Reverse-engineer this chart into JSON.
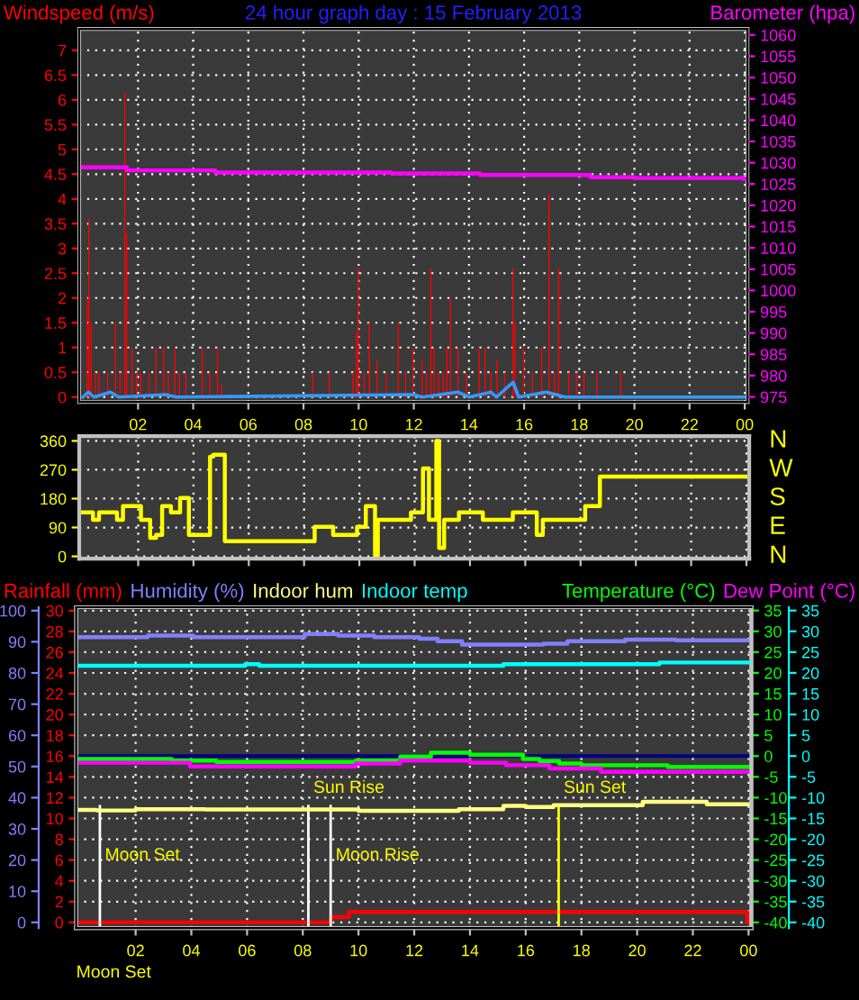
{
  "chart_data": [
    {
      "type": "bar",
      "title": "24 hour graph day : 15 February 2013",
      "legend": "top",
      "grid": true,
      "xlim": [
        "2013-02-14T23:52",
        "2013-02-16T00:06"
      ],
      "xticks": [
        {
          "value": "2013-02-15T02:00",
          "label": "02"
        },
        {
          "value": "2013-02-15T04:00",
          "label": "04"
        },
        {
          "value": "2013-02-15T06:00",
          "label": "06"
        },
        {
          "value": "2013-02-15T08:00",
          "label": "08"
        },
        {
          "value": "2013-02-15T10:00",
          "label": "10"
        },
        {
          "value": "2013-02-15T12:00",
          "label": "12"
        },
        {
          "value": "2013-02-15T14:00",
          "label": "14"
        },
        {
          "value": "2013-02-15T16:00",
          "label": "16"
        },
        {
          "value": "2013-02-15T18:00",
          "label": "18"
        },
        {
          "value": "2013-02-15T20:00",
          "label": "20"
        },
        {
          "value": "2013-02-15T22:00",
          "label": "22"
        },
        {
          "value": "2013-02-16T00:00",
          "label": "00"
        }
      ],
      "ylim": [
        -0.1,
        7.43
      ],
      "yticks": [
        0,
        0.5,
        1,
        1.5,
        2,
        2.5,
        3,
        3.5,
        4,
        4.5,
        5,
        5.5,
        6,
        6.5,
        7
      ],
      "y2lim": [
        973.8,
        1061.4
      ],
      "y2ticks": [
        975,
        980,
        985,
        990,
        995,
        1000,
        1005,
        1010,
        1015,
        1020,
        1025,
        1030,
        1035,
        1040,
        1045,
        1050,
        1055,
        1060
      ],
      "series": [
        {
          "name": "Windspeed (m/s)",
          "type": "bar",
          "color": "#ff0000",
          "x": [
            "2013-02-15T00:09",
            "2013-02-15T00:13",
            "2013-02-15T00:18",
            "2013-02-15T00:27",
            "2013-02-15T00:35",
            "2013-02-15T00:54",
            "2013-02-15T01:11",
            "2013-02-15T01:21",
            "2013-02-15T01:31",
            "2013-02-15T01:35",
            "2013-02-15T01:47",
            "2013-02-15T01:57",
            "2013-02-15T02:06",
            "2013-02-15T02:24",
            "2013-02-15T02:39",
            "2013-02-15T02:56",
            "2013-02-15T03:06",
            "2013-02-15T03:20",
            "2013-02-15T03:30",
            "2013-02-15T03:44",
            "2013-02-15T04:20",
            "2013-02-15T04:36",
            "2013-02-15T04:53",
            "2013-02-15T05:02",
            "2013-02-15T08:20",
            "2013-02-15T08:56",
            "2013-02-15T09:48",
            "2013-02-15T09:55",
            "2013-02-15T09:59",
            "2013-02-15T10:12",
            "2013-02-15T10:23",
            "2013-02-15T10:40",
            "2013-02-15T11:00",
            "2013-02-15T11:26",
            "2013-02-15T11:42",
            "2013-02-15T11:58",
            "2013-02-15T12:18",
            "2013-02-15T12:27",
            "2013-02-15T12:37",
            "2013-02-15T12:44",
            "2013-02-15T12:54",
            "2013-02-15T13:04",
            "2013-02-15T13:12",
            "2013-02-15T13:20",
            "2013-02-15T13:36",
            "2013-02-15T13:54",
            "2013-02-15T14:22",
            "2013-02-15T14:35",
            "2013-02-15T14:48",
            "2013-02-15T15:01",
            "2013-02-15T15:18",
            "2013-02-15T15:36",
            "2013-02-15T15:40",
            "2013-02-15T15:59",
            "2013-02-15T16:18",
            "2013-02-15T16:38",
            "2013-02-15T16:54",
            "2013-02-15T17:06",
            "2013-02-15T17:15",
            "2013-02-15T17:37",
            "2013-02-15T17:54",
            "2013-02-15T18:10",
            "2013-02-15T18:38",
            "2013-02-15T19:30"
          ],
          "values": [
            2.0,
            3.6,
            1.5,
            0.5,
            0.5,
            0.5,
            1.5,
            0.5,
            6.15,
            3.3,
            1.0,
            0.5,
            0.5,
            0.5,
            1.0,
            1.0,
            0.5,
            1.0,
            0.5,
            0.5,
            1.0,
            0.5,
            1.0,
            0.25,
            0.5,
            0.5,
            0.5,
            1.3,
            2.6,
            0.5,
            1.5,
            0.75,
            0.5,
            1.5,
            0.5,
            1.0,
            0.75,
            0.5,
            2.6,
            1.0,
            0.5,
            0.5,
            1.0,
            2.0,
            1.0,
            0.5,
            1.0,
            1.0,
            0.5,
            0.75,
            0.5,
            2.6,
            1.5,
            1.0,
            0.5,
            1.0,
            4.1,
            0.5,
            2.6,
            0.5,
            0.5,
            0.5,
            0.5,
            0.5
          ]
        },
        {
          "type": "line",
          "color": "#3399ff",
          "x": [
            "2013-02-15T00:00",
            "2013-02-15T00:12",
            "2013-02-15T00:24",
            "2013-02-15T01:00",
            "2013-02-15T01:18",
            "2013-02-15T03:00",
            "2013-02-15T03:24",
            "2013-02-15T12:00",
            "2013-02-15T12:18",
            "2013-02-15T13:36",
            "2013-02-15T14:00",
            "2013-02-15T14:48",
            "2013-02-15T15:00",
            "2013-02-15T15:36",
            "2013-02-15T15:48",
            "2013-02-15T16:48",
            "2013-02-15T17:30",
            "2013-02-16T00:00"
          ],
          "values": [
            0,
            0.1,
            0,
            0.1,
            0,
            0.05,
            0,
            0.05,
            0,
            0.1,
            0,
            0.1,
            0,
            0.3,
            0,
            0.1,
            0,
            0
          ]
        },
        {
          "name": "Barometer (hpa)",
          "type": "step",
          "axis": "y2",
          "color": "#ff00ff",
          "x": [
            "2013-02-15T00:00",
            "2013-02-15T01:36",
            "2013-02-15T04:48",
            "2013-02-15T10:48",
            "2013-02-15T11:12",
            "2013-02-15T14:24",
            "2013-02-15T18:24",
            "2013-02-15T20:00",
            "2013-02-16T00:00"
          ],
          "values": [
            1028.9,
            1028.2,
            1027.7,
            1027.7,
            1027.5,
            1027.1,
            1026.6,
            1026.4,
            1026.2
          ]
        }
      ]
    },
    {
      "type": "step",
      "grid": true,
      "tick_labels": "y",
      "legend": false,
      "xlim": [
        "2013-02-14T23:52",
        "2013-02-16T00:06"
      ],
      "xticks": [
        {
          "value": "2013-02-15T02:00",
          "label": null
        },
        {
          "value": "2013-02-15T04:00",
          "label": null
        },
        {
          "value": "2013-02-15T06:00",
          "label": null
        },
        {
          "value": "2013-02-15T08:00",
          "label": null
        },
        {
          "value": "2013-02-15T10:00",
          "label": null
        },
        {
          "value": "2013-02-15T12:00",
          "label": null
        },
        {
          "value": "2013-02-15T14:00",
          "label": null
        },
        {
          "value": "2013-02-15T16:00",
          "label": null
        },
        {
          "value": "2013-02-15T18:00",
          "label": null
        },
        {
          "value": "2013-02-15T20:00",
          "label": null
        },
        {
          "value": "2013-02-15T22:00",
          "label": null
        },
        {
          "value": "2013-02-16T00:00",
          "label": null
        }
      ],
      "ylim": [
        -7,
        375
      ],
      "yticks": [
        0,
        90,
        180,
        270,
        360
      ],
      "annotations": [
        "N",
        "W",
        "S",
        "E",
        "N"
      ],
      "series": [
        {
          "color": "#ffff00",
          "x": [
            "2013-02-15T00:00",
            "2013-02-15T00:22",
            "2013-02-15T00:35",
            "2013-02-15T01:14",
            "2013-02-15T01:27",
            "2013-02-15T02:06",
            "2013-02-15T02:26",
            "2013-02-15T02:39",
            "2013-02-15T02:52",
            "2013-02-15T03:11",
            "2013-02-15T03:31",
            "2013-02-15T03:50",
            "2013-02-15T04:36",
            "2013-02-15T04:43",
            "2013-02-15T05:08",
            "2013-02-15T08:23",
            "2013-02-15T09:03",
            "2013-02-15T09:55",
            "2013-02-15T10:14",
            "2013-02-15T10:34",
            "2013-02-15T10:40",
            "2013-02-15T11:52",
            "2013-02-15T12:18",
            "2013-02-15T12:31",
            "2013-02-15T12:47",
            "2013-02-15T12:53",
            "2013-02-15T13:04",
            "2013-02-15T13:36",
            "2013-02-15T14:28",
            "2013-02-15T15:33",
            "2013-02-15T16:25",
            "2013-02-15T16:38",
            "2013-02-15T18:10",
            "2013-02-15T18:42",
            "2013-02-16T00:00"
          ],
          "values": [
            137,
            114,
            137,
            114,
            157,
            114,
            58,
            67,
            157,
            137,
            182,
            67,
            311,
            317,
            47,
            92,
            67,
            92,
            157,
            0,
            114,
            137,
            274,
            114,
            360,
            26,
            114,
            137,
            114,
            137,
            67,
            114,
            157,
            249,
            249
          ]
        }
      ]
    },
    {
      "type": "step",
      "legend": "top",
      "grid": true,
      "xlim": [
        "2013-02-14T23:52",
        "2013-02-16T00:06"
      ],
      "xticks": [
        {
          "value": "2013-02-15T02:00",
          "label": "02"
        },
        {
          "value": "2013-02-15T04:00",
          "label": "04"
        },
        {
          "value": "2013-02-15T06:00",
          "label": "06"
        },
        {
          "value": "2013-02-15T08:00",
          "label": "08"
        },
        {
          "value": "2013-02-15T10:00",
          "label": "10"
        },
        {
          "value": "2013-02-15T12:00",
          "label": "12"
        },
        {
          "value": "2013-02-15T14:00",
          "label": "14"
        },
        {
          "value": "2013-02-15T16:00",
          "label": "16"
        },
        {
          "value": "2013-02-15T18:00",
          "label": "18"
        },
        {
          "value": "2013-02-15T20:00",
          "label": "20"
        },
        {
          "value": "2013-02-15T22:00",
          "label": "22"
        },
        {
          "value": "2013-02-16T00:00",
          "label": "00"
        }
      ],
      "ylim": [
        -0.54,
        30.33
      ],
      "yticks": [
        0,
        2,
        4,
        6,
        8,
        10,
        12,
        14,
        16,
        18,
        20,
        22,
        24,
        26,
        28,
        30
      ],
      "y2lim": [
        -1.8,
        101.1
      ],
      "y2ticks": [
        0,
        10,
        20,
        30,
        40,
        50,
        60,
        70,
        80,
        90,
        100
      ],
      "ref_lines": [
        {
          "axis": "x",
          "value": "2013-02-15T00:43",
          "label": "Moon Set",
          "color": "#ffffff"
        },
        {
          "axis": "x",
          "value": "2013-02-15T08:12",
          "label": "Sun Rise",
          "color": "#ffffff"
        },
        {
          "axis": "x",
          "value": "2013-02-15T09:00",
          "label": "Moon Rise",
          "color": "#ffffff"
        },
        {
          "axis": "x",
          "value": "2013-02-15T17:11",
          "label": "Sun Set",
          "color": "#ffff00"
        }
      ],
      "annotations": [
        "Moon Set"
      ],
      "series": [
        {
          "name": "Rainfall (mm)",
          "color": "#ff0000",
          "x": [
            "2013-02-15T00:00",
            "2013-02-15T09:00",
            "2013-02-15T09:39",
            "2013-02-15T23:57",
            "2013-02-16T00:05"
          ],
          "values": [
            0,
            0.5,
            1.0,
            0,
            0
          ]
        },
        {
          "name": "Humidity (%)",
          "axis": "y2",
          "color": "#8080ff",
          "x": [
            "2013-02-15T00:00",
            "2013-02-15T02:26",
            "2013-02-15T04:04",
            "2013-02-15T08:04",
            "2013-02-15T09:16",
            "2013-02-15T10:34",
            "2013-02-15T12:11",
            "2013-02-15T12:50",
            "2013-02-15T13:43",
            "2013-02-15T16:38",
            "2013-02-15T17:30",
            "2013-02-15T19:34",
            "2013-02-15T21:24",
            "2013-02-16T00:00"
          ],
          "values": [
            91.5,
            92.0,
            91.5,
            92.5,
            92.0,
            91.5,
            91.0,
            90.2,
            89.1,
            89.4,
            90.2,
            90.7,
            90.5,
            90.5
          ]
        },
        {
          "name": "Indoor hum",
          "axis": "y2",
          "color": "#ffff80",
          "x": [
            "2013-02-15T00:00",
            "2013-02-15T00:36",
            "2013-02-15T02:00",
            "2013-02-15T04:30",
            "2013-02-15T10:00",
            "2013-02-15T13:36",
            "2013-02-15T15:12",
            "2013-02-15T16:00",
            "2013-02-15T17:00",
            "2013-02-15T20:12",
            "2013-02-15T22:30",
            "2013-02-16T00:00"
          ],
          "values": [
            36.1,
            35.9,
            36.3,
            36.2,
            35.8,
            36.3,
            37.4,
            37.0,
            37.6,
            38.7,
            37.9,
            37.9
          ]
        }
      ]
    },
    {
      "type": "step",
      "legend": "top",
      "tick_labels": "y",
      "xlim": [
        "2013-02-14T23:52",
        "2013-02-16T00:06"
      ],
      "ylim": [
        -41.35,
        35.8
      ],
      "yticks": [
        -40,
        -35,
        -30,
        -25,
        -20,
        -15,
        -10,
        -5,
        0,
        5,
        10,
        15,
        20,
        25,
        30,
        35
      ],
      "y2lim": [
        -41.35,
        35.8
      ],
      "y2ticks": [
        -40,
        -35,
        -30,
        -25,
        -20,
        -15,
        -10,
        -5,
        0,
        5,
        10,
        15,
        20,
        25,
        30,
        35
      ],
      "ref_lines": [
        {
          "axis": "y",
          "value": 0,
          "color": "#000080"
        }
      ],
      "series": [
        {
          "name": "Indoor temp",
          "axis": "y2",
          "color": "#00ffff",
          "x": [
            "2013-02-15T00:00",
            "2013-02-15T05:56",
            "2013-02-15T06:26",
            "2013-02-15T15:12",
            "2013-02-15T20:48",
            "2013-02-16T00:00"
          ],
          "values": [
            21.7,
            22.1,
            21.7,
            22.1,
            22.5,
            22.5
          ]
        },
        {
          "name": "Temperature (°C)",
          "color": "#00ff00",
          "x": [
            "2013-02-15T00:00",
            "2013-02-15T03:18",
            "2013-02-15T04:54",
            "2013-02-15T09:54",
            "2013-02-15T11:30",
            "2013-02-15T12:36",
            "2013-02-15T14:00",
            "2013-02-15T15:54",
            "2013-02-15T16:30",
            "2013-02-15T17:12",
            "2013-02-15T18:00",
            "2013-02-15T21:06",
            "2013-02-16T00:00"
          ],
          "values": [
            -0.7,
            -1.1,
            -1.4,
            -1.1,
            -0.1,
            0.8,
            0.3,
            -0.7,
            -1.2,
            -1.8,
            -2.2,
            -2.6,
            -2.6
          ]
        },
        {
          "name": "Dew Point (°C)",
          "color": "#ff00ff",
          "x": [
            "2013-02-15T00:00",
            "2013-02-15T03:57",
            "2013-02-15T09:54",
            "2013-02-15T11:30",
            "2013-02-15T14:00",
            "2013-02-15T15:18",
            "2013-02-15T16:51",
            "2013-02-15T18:42",
            "2013-02-16T00:00"
          ],
          "values": [
            -1.6,
            -2.5,
            -1.8,
            -1.1,
            -1.6,
            -2.2,
            -3.0,
            -3.8,
            -3.8
          ]
        }
      ]
    }
  ]
}
